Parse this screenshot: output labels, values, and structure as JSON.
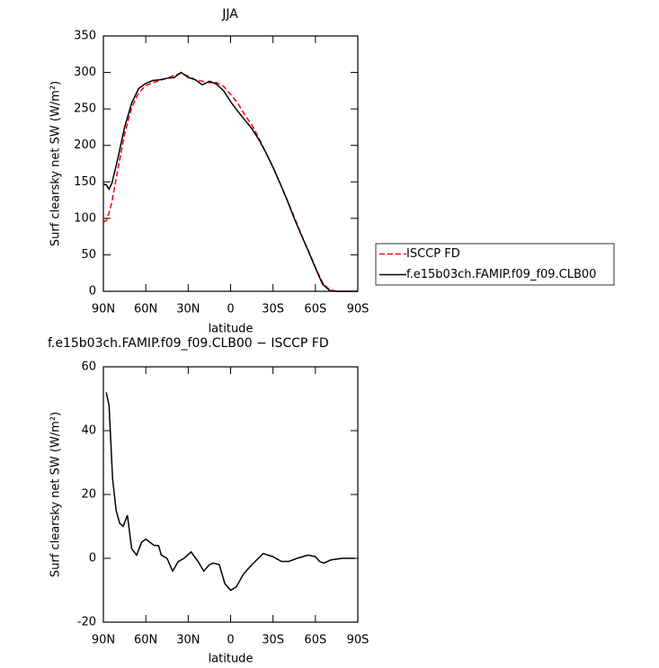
{
  "chart_data": [
    {
      "type": "line",
      "title": "JJA",
      "xlabel": "latitude",
      "ylabel": "Surf clearsky net SW (W/m²)",
      "x": [
        90,
        88,
        86,
        84,
        80,
        75,
        70,
        65,
        60,
        55,
        50,
        45,
        40,
        35,
        30,
        25,
        20,
        15,
        10,
        5,
        0,
        -5,
        -10,
        -15,
        -20,
        -25,
        -30,
        -35,
        -40,
        -45,
        -50,
        -55,
        -60,
        -65,
        -70,
        -75,
        -80,
        -85,
        -90
      ],
      "series": [
        {
          "name": "ISCCP FD",
          "color": "#ff0000",
          "linestyle": "dashed",
          "values": [
            95,
            97,
            108,
            122,
            165,
            215,
            252,
            272,
            282,
            286,
            289,
            292,
            296,
            299,
            295,
            290,
            288,
            286,
            286,
            281,
            270,
            258,
            242,
            228,
            210,
            190,
            170,
            148,
            125,
            102,
            78,
            56,
            33,
            12,
            2,
            0,
            0,
            0,
            0
          ]
        },
        {
          "name": "f.e15b03ch.FAMIP.f09_f09.CLB00",
          "color": "#000000",
          "linestyle": "solid",
          "values": [
            147,
            146,
            140,
            148,
            180,
            225,
            258,
            278,
            285,
            289,
            290,
            292,
            293,
            300,
            293,
            290,
            283,
            288,
            284,
            275,
            260,
            247,
            235,
            223,
            208,
            190,
            170,
            148,
            125,
            100,
            77,
            55,
            32,
            10,
            1,
            0,
            0,
            0,
            0
          ]
        }
      ],
      "xlim": [
        90,
        -90
      ],
      "ylim": [
        0,
        350
      ],
      "xticks": [
        {
          "value": 90,
          "label": "90N"
        },
        {
          "value": 60,
          "label": "60N"
        },
        {
          "value": 30,
          "label": "30N"
        },
        {
          "value": 0,
          "label": "0"
        },
        {
          "value": -30,
          "label": "30S"
        },
        {
          "value": -60,
          "label": "60S"
        },
        {
          "value": -90,
          "label": "90S"
        }
      ],
      "yticks": [
        0,
        50,
        100,
        150,
        200,
        250,
        300,
        350
      ],
      "legend": "right"
    },
    {
      "type": "line",
      "title": "f.e15b03ch.FAMIP.f09_f09.CLB00 − ISCCP FD",
      "xlabel": "latitude",
      "ylabel": "Surf clearsky net SW (W/m²)",
      "x": [
        88,
        86,
        83.5,
        81,
        78.5,
        76,
        73,
        70,
        66.5,
        63,
        60,
        57,
        54,
        51,
        49,
        45,
        41,
        37,
        33,
        28,
        23,
        19,
        15,
        12,
        8,
        4,
        0,
        -4,
        -9,
        -15,
        -23,
        -30,
        -36,
        -41,
        -47,
        -55,
        -60,
        -63,
        -66,
        -71,
        -79,
        -88
      ],
      "series": [
        {
          "color": "#000000",
          "linestyle": "solid",
          "values": [
            52,
            48,
            25,
            15,
            11,
            10,
            13.5,
            3,
            1,
            5,
            6,
            5,
            4,
            4,
            1,
            0,
            -4,
            -1,
            0,
            2,
            -1,
            -4,
            -2,
            -1.5,
            -2,
            -8,
            -10,
            -9,
            -5,
            -2,
            1.5,
            0.5,
            -1,
            -1,
            0,
            1,
            0.5,
            -1,
            -1.5,
            -0.5,
            0,
            0
          ]
        }
      ],
      "xlim": [
        90,
        -90
      ],
      "ylim": [
        -20,
        60
      ],
      "xticks": [
        {
          "value": 90,
          "label": "90N"
        },
        {
          "value": 60,
          "label": "60N"
        },
        {
          "value": 30,
          "label": "30N"
        },
        {
          "value": 0,
          "label": "0"
        },
        {
          "value": -30,
          "label": "30S"
        },
        {
          "value": -60,
          "label": "60S"
        },
        {
          "value": -90,
          "label": "90S"
        }
      ],
      "yticks": [
        -20,
        0,
        20,
        40,
        60
      ]
    }
  ]
}
